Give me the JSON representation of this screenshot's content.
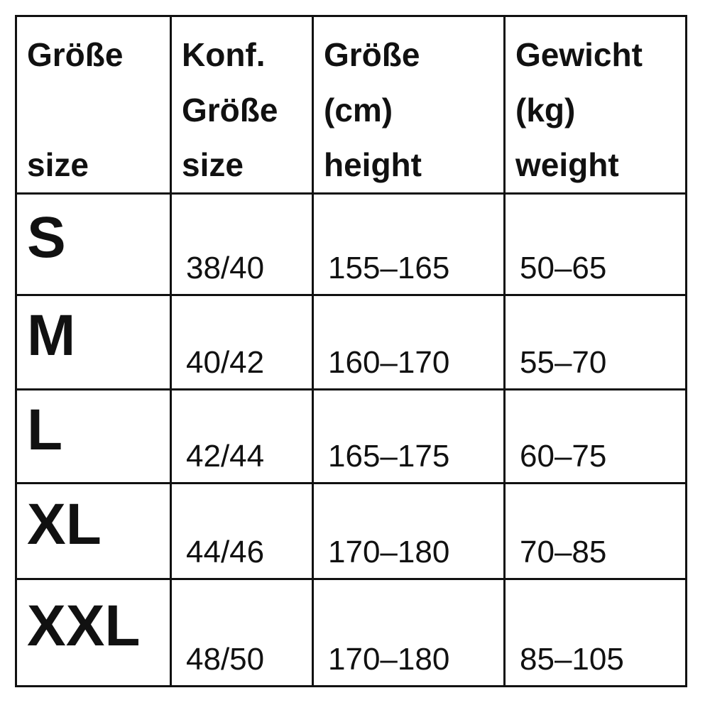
{
  "table": {
    "header": [
      [
        "Größe",
        "size"
      ],
      [
        "Konf.",
        "Größe",
        "size"
      ],
      [
        "Größe",
        "(cm)",
        "height"
      ],
      [
        "Gewicht",
        "(kg)",
        "weight"
      ]
    ],
    "rows": [
      [
        "S",
        "38/40",
        "155–165",
        "50–65"
      ],
      [
        "M",
        "40/42",
        "160–170",
        "55–70"
      ],
      [
        "L",
        "42/44",
        "165–175",
        "60–75"
      ],
      [
        "XL",
        "44/46",
        "170–180",
        "70–85"
      ],
      [
        "XXL",
        "48/50",
        "170–180",
        "85–105"
      ]
    ]
  }
}
